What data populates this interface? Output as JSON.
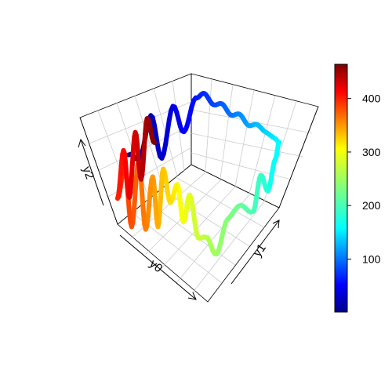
{
  "chart_data": {
    "type": "line",
    "title": "",
    "axes": {
      "x": "y0",
      "y": "y1",
      "z": "y2"
    },
    "colorbar": {
      "ticks": [
        100,
        200,
        300,
        400
      ],
      "range": [
        1,
        464
      ],
      "palette": "jet"
    },
    "grid": true,
    "n_points": 464,
    "path": [
      {
        "t": 1,
        "y0": 0.85,
        "y1": 0.0,
        "y2": 0.7
      },
      {
        "t": 10,
        "y0": 0.7,
        "y1": 0.0,
        "y2": 0.55
      },
      {
        "t": 20,
        "y0": 0.55,
        "y1": 0.0,
        "y2": 0.95
      },
      {
        "t": 30,
        "y0": 0.4,
        "y1": 0.0,
        "y2": 0.35
      },
      {
        "t": 40,
        "y0": 0.25,
        "y1": 0.0,
        "y2": 0.85
      },
      {
        "t": 50,
        "y0": 0.1,
        "y1": 0.0,
        "y2": 0.45
      },
      {
        "t": 60,
        "y0": 0.0,
        "y1": 0.05,
        "y2": 0.8
      },
      {
        "t": 70,
        "y0": 0.0,
        "y1": 0.15,
        "y2": 0.9
      },
      {
        "t": 80,
        "y0": 0.0,
        "y1": 0.25,
        "y2": 0.82
      },
      {
        "t": 90,
        "y0": 0.0,
        "y1": 0.35,
        "y2": 0.88
      },
      {
        "t": 100,
        "y0": 0.0,
        "y1": 0.45,
        "y2": 0.8
      },
      {
        "t": 110,
        "y0": 0.0,
        "y1": 0.55,
        "y2": 0.86
      },
      {
        "t": 120,
        "y0": 0.0,
        "y1": 0.65,
        "y2": 0.78
      },
      {
        "t": 130,
        "y0": 0.0,
        "y1": 0.75,
        "y2": 0.84
      },
      {
        "t": 140,
        "y0": 0.0,
        "y1": 0.85,
        "y2": 0.8
      },
      {
        "t": 150,
        "y0": 0.0,
        "y1": 0.95,
        "y2": 0.78
      },
      {
        "t": 158,
        "y0": 0.0,
        "y1": 1.0,
        "y2": 0.76
      },
      {
        "t": 160,
        "y0": 0.05,
        "y1": 1.0,
        "y2": 0.6
      },
      {
        "t": 175,
        "y0": 0.15,
        "y1": 1.0,
        "y2": 0.3
      },
      {
        "t": 190,
        "y0": 0.25,
        "y1": 1.0,
        "y2": 0.55
      },
      {
        "t": 200,
        "y0": 0.35,
        "y1": 1.0,
        "y2": 0.2
      },
      {
        "t": 220,
        "y0": 0.55,
        "y1": 1.0,
        "y2": 0.4
      },
      {
        "t": 235,
        "y0": 0.7,
        "y1": 1.0,
        "y2": 0.35
      },
      {
        "t": 250,
        "y0": 0.85,
        "y1": 1.0,
        "y2": 0.05
      },
      {
        "t": 265,
        "y0": 1.0,
        "y1": 1.0,
        "y2": 0.35
      },
      {
        "t": 275,
        "y0": 1.0,
        "y1": 0.92,
        "y2": 0.3
      },
      {
        "t": 290,
        "y0": 1.0,
        "y1": 0.82,
        "y2": 0.75
      },
      {
        "t": 300,
        "y0": 1.0,
        "y1": 0.75,
        "y2": 0.4
      },
      {
        "t": 310,
        "y0": 1.0,
        "y1": 0.68,
        "y2": 0.8
      },
      {
        "t": 320,
        "y0": 1.0,
        "y1": 0.6,
        "y2": 0.55
      },
      {
        "t": 330,
        "y0": 1.0,
        "y1": 0.52,
        "y2": 0.9
      },
      {
        "t": 340,
        "y0": 1.0,
        "y1": 0.46,
        "y2": 0.2
      },
      {
        "t": 350,
        "y0": 1.0,
        "y1": 0.4,
        "y2": 0.75
      },
      {
        "t": 360,
        "y0": 1.0,
        "y1": 0.32,
        "y2": 0.1
      },
      {
        "t": 370,
        "y0": 1.0,
        "y1": 0.24,
        "y2": 0.85
      },
      {
        "t": 380,
        "y0": 1.0,
        "y1": 0.16,
        "y2": 0.05
      },
      {
        "t": 390,
        "y0": 1.0,
        "y1": 0.08,
        "y2": 0.7
      },
      {
        "t": 400,
        "y0": 1.0,
        "y1": 0.0,
        "y2": 0.3
      },
      {
        "t": 410,
        "y0": 0.92,
        "y1": 0.0,
        "y2": 0.8
      },
      {
        "t": 420,
        "y0": 0.84,
        "y1": 0.0,
        "y2": 0.2
      },
      {
        "t": 430,
        "y0": 0.76,
        "y1": 0.0,
        "y2": 0.9
      },
      {
        "t": 440,
        "y0": 0.68,
        "y1": 0.0,
        "y2": 0.3
      },
      {
        "t": 450,
        "y0": 0.6,
        "y1": 0.0,
        "y2": 0.95
      },
      {
        "t": 464,
        "y0": 0.5,
        "y1": 0.0,
        "y2": 0.6
      }
    ]
  }
}
